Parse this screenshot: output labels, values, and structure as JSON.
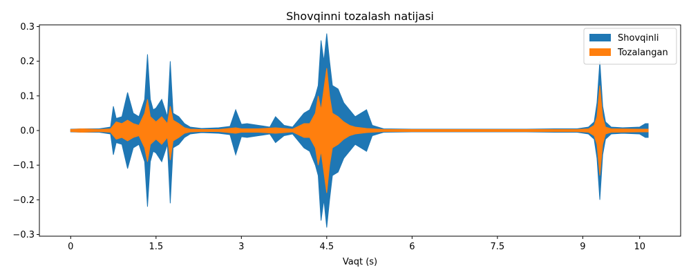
{
  "chart_data": {
    "type": "area",
    "title": "Shovqinni tozalash natijasi",
    "xlabel": "Vaqt (s)",
    "ylabel": "",
    "xlim": [
      -0.55,
      10.72
    ],
    "ylim": [
      -0.305,
      0.305
    ],
    "xticks": [
      {
        "value": 0,
        "label": "0"
      },
      {
        "value": 1.5,
        "label": "1.5"
      },
      {
        "value": 3,
        "label": "3"
      },
      {
        "value": 4.5,
        "label": "4.5"
      },
      {
        "value": 6,
        "label": "6"
      },
      {
        "value": 7.5,
        "label": "7.5"
      },
      {
        "value": 9,
        "label": "9"
      },
      {
        "value": 10,
        "label": "10"
      }
    ],
    "yticks": [
      {
        "value": 0.3,
        "label": "0.3"
      },
      {
        "value": 0.2,
        "label": "0.2"
      },
      {
        "value": 0.1,
        "label": "0.1"
      },
      {
        "value": 0.0,
        "label": "0.0"
      },
      {
        "value": -0.1,
        "label": "−0.1"
      },
      {
        "value": -0.2,
        "label": "−0.2"
      },
      {
        "value": -0.3,
        "label": "−0.3"
      }
    ],
    "grid": false,
    "legend_position": "top-right",
    "series": [
      {
        "name": "Shovqinli",
        "color": "#1f77b4",
        "x": [
          0.0,
          0.2,
          0.5,
          0.7,
          0.75,
          0.8,
          0.9,
          1.0,
          1.1,
          1.2,
          1.3,
          1.35,
          1.4,
          1.45,
          1.5,
          1.6,
          1.7,
          1.75,
          1.8,
          1.9,
          2.0,
          2.1,
          2.3,
          2.6,
          2.8,
          2.9,
          3.0,
          3.1,
          3.3,
          3.5,
          3.6,
          3.75,
          3.9,
          4.1,
          4.2,
          4.3,
          4.35,
          4.4,
          4.45,
          4.5,
          4.55,
          4.6,
          4.7,
          4.8,
          4.9,
          5.0,
          5.1,
          5.2,
          5.3,
          5.5,
          6.0,
          6.5,
          7.0,
          7.5,
          8.0,
          8.5,
          8.9,
          9.1,
          9.2,
          9.25,
          9.3,
          9.35,
          9.4,
          9.5,
          9.7,
          10.0,
          10.1,
          10.15
        ],
        "upper": [
          0.004,
          0.005,
          0.005,
          0.01,
          0.07,
          0.035,
          0.04,
          0.11,
          0.05,
          0.04,
          0.09,
          0.22,
          0.09,
          0.06,
          0.065,
          0.09,
          0.04,
          0.2,
          0.05,
          0.04,
          0.02,
          0.01,
          0.006,
          0.008,
          0.012,
          0.06,
          0.018,
          0.02,
          0.015,
          0.01,
          0.04,
          0.015,
          0.01,
          0.05,
          0.06,
          0.1,
          0.13,
          0.26,
          0.2,
          0.28,
          0.2,
          0.13,
          0.12,
          0.08,
          0.06,
          0.04,
          0.05,
          0.06,
          0.015,
          0.005,
          0.004,
          0.004,
          0.004,
          0.004,
          0.004,
          0.005,
          0.005,
          0.01,
          0.025,
          0.08,
          0.2,
          0.07,
          0.025,
          0.01,
          0.008,
          0.01,
          0.02,
          0.02
        ],
        "lower": [
          -0.004,
          -0.005,
          -0.005,
          -0.01,
          -0.07,
          -0.035,
          -0.04,
          -0.11,
          -0.05,
          -0.04,
          -0.09,
          -0.22,
          -0.09,
          -0.06,
          -0.065,
          -0.09,
          -0.04,
          -0.21,
          -0.05,
          -0.04,
          -0.02,
          -0.01,
          -0.006,
          -0.008,
          -0.012,
          -0.07,
          -0.018,
          -0.02,
          -0.015,
          -0.01,
          -0.035,
          -0.015,
          -0.01,
          -0.05,
          -0.06,
          -0.1,
          -0.13,
          -0.26,
          -0.2,
          -0.28,
          -0.2,
          -0.13,
          -0.12,
          -0.08,
          -0.06,
          -0.04,
          -0.05,
          -0.06,
          -0.015,
          -0.005,
          -0.004,
          -0.004,
          -0.004,
          -0.004,
          -0.004,
          -0.005,
          -0.005,
          -0.01,
          -0.025,
          -0.08,
          -0.2,
          -0.07,
          -0.025,
          -0.01,
          -0.008,
          -0.01,
          -0.02,
          -0.02
        ]
      },
      {
        "name": "Tozalangan",
        "color": "#ff7f0e",
        "x": [
          0.0,
          0.2,
          0.5,
          0.7,
          0.8,
          0.9,
          1.0,
          1.1,
          1.2,
          1.3,
          1.35,
          1.4,
          1.5,
          1.6,
          1.7,
          1.75,
          1.8,
          1.9,
          2.0,
          2.1,
          2.3,
          2.6,
          2.9,
          3.0,
          3.3,
          3.6,
          3.9,
          4.1,
          4.2,
          4.3,
          4.35,
          4.4,
          4.45,
          4.5,
          4.55,
          4.6,
          4.7,
          4.8,
          4.9,
          5.0,
          5.2,
          5.5,
          6.0,
          7.0,
          8.0,
          8.9,
          9.1,
          9.2,
          9.25,
          9.3,
          9.35,
          9.4,
          9.5,
          10.0,
          10.15
        ],
        "upper": [
          0.003,
          0.005,
          0.003,
          0.005,
          0.025,
          0.02,
          0.03,
          0.02,
          0.015,
          0.05,
          0.09,
          0.04,
          0.025,
          0.04,
          0.02,
          0.07,
          0.03,
          0.02,
          0.008,
          0.004,
          0.003,
          0.003,
          0.008,
          0.005,
          0.005,
          0.008,
          0.004,
          0.02,
          0.02,
          0.05,
          0.1,
          0.06,
          0.12,
          0.18,
          0.1,
          0.05,
          0.04,
          0.025,
          0.015,
          0.01,
          0.006,
          0.003,
          0.003,
          0.003,
          0.003,
          0.003,
          0.005,
          0.015,
          0.04,
          0.13,
          0.04,
          0.01,
          0.005,
          0.004,
          0.004
        ],
        "lower": [
          -0.003,
          -0.005,
          -0.003,
          -0.005,
          -0.025,
          -0.02,
          -0.03,
          -0.02,
          -0.015,
          -0.05,
          -0.09,
          -0.04,
          -0.025,
          -0.04,
          -0.02,
          -0.085,
          -0.03,
          -0.02,
          -0.008,
          -0.004,
          -0.003,
          -0.003,
          -0.008,
          -0.005,
          -0.005,
          -0.008,
          -0.004,
          -0.02,
          -0.02,
          -0.05,
          -0.1,
          -0.06,
          -0.12,
          -0.18,
          -0.1,
          -0.05,
          -0.04,
          -0.025,
          -0.015,
          -0.01,
          -0.006,
          -0.003,
          -0.003,
          -0.003,
          -0.003,
          -0.003,
          -0.005,
          -0.015,
          -0.04,
          -0.13,
          -0.04,
          -0.01,
          -0.005,
          -0.004,
          -0.004
        ]
      }
    ]
  }
}
